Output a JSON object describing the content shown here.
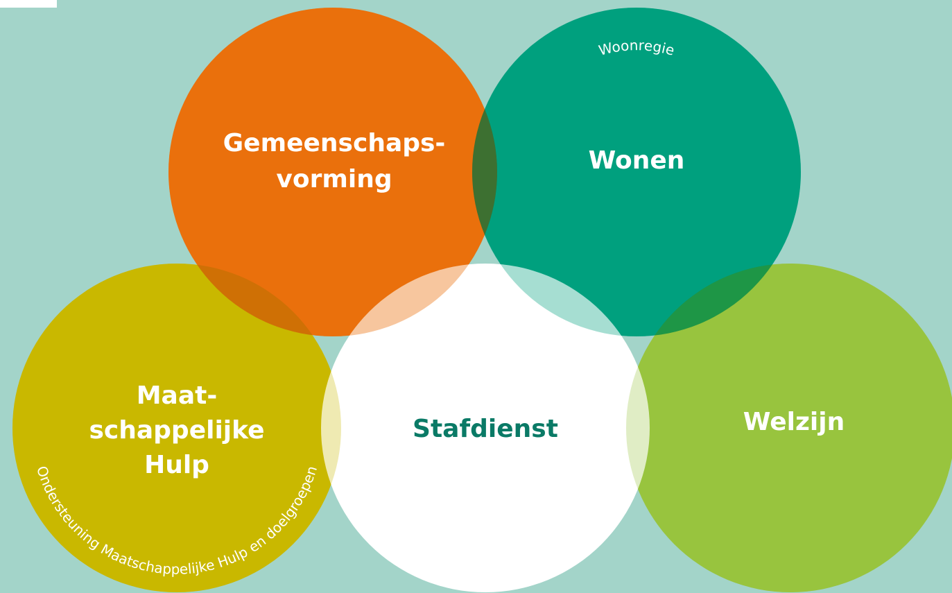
{
  "nodes": [
    {
      "label": [
        "Gemeenschaps-",
        "vorming"
      ]
    },
    {
      "label": [
        "Wonen"
      ],
      "sublabel": "Woonregie"
    },
    {
      "label": [
        "Maat-",
        "schappelijke",
        "Hulp"
      ],
      "sublabel": "Ondersteuning Maatschappelijke Hulp en doelgroepen"
    },
    {
      "label": [
        "Stafdienst"
      ]
    },
    {
      "label": [
        "Welzijn"
      ]
    }
  ]
}
